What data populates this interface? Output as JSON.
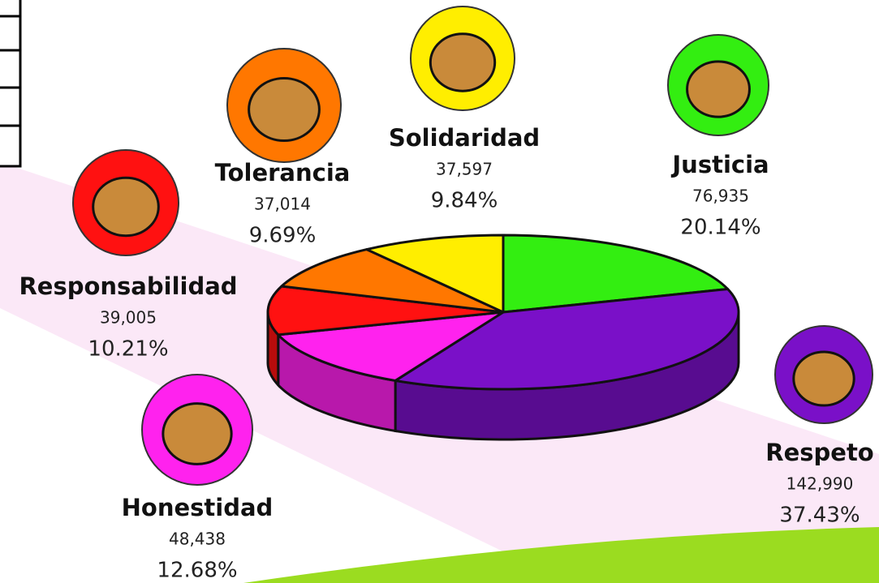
{
  "chart_data": {
    "type": "pie",
    "categories": [
      "Justicia",
      "Respeto",
      "Honestidad",
      "Responsabilidad",
      "Tolerancia",
      "Solidaridad"
    ],
    "values": [
      76935,
      142990,
      48438,
      39005,
      37014,
      37597
    ],
    "value_labels": [
      "76,935",
      "142,990",
      "48,438",
      "39,005",
      "37,014",
      "37,597"
    ],
    "percents": [
      20.14,
      37.43,
      12.68,
      10.21,
      9.69,
      9.84
    ],
    "percent_labels": [
      "20.14%",
      "37.43%",
      "12.68%",
      "10.21%",
      "9.69%",
      "9.84%"
    ],
    "colors": [
      "#33ee11",
      "#7a10c8",
      "#ff22ee",
      "#ff1111",
      "#ff7700",
      "#ffee00"
    ]
  }
}
